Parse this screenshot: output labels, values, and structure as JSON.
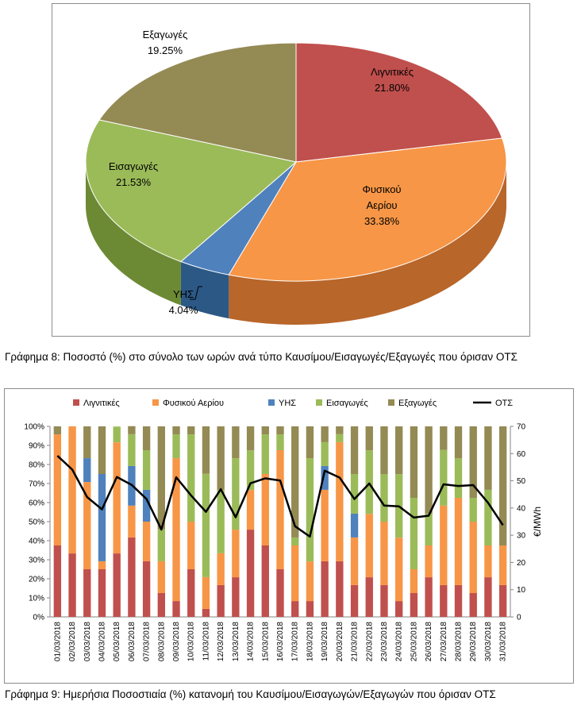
{
  "chart_data": [
    {
      "type": "pie",
      "title": "",
      "slices": [
        {
          "name": "Λιγνιτικές",
          "value": 21.8,
          "label": "21.80%",
          "color": "#c0504d",
          "side": "#8e2f2c"
        },
        {
          "name": "Φυσικού Αερίου",
          "value": 33.38,
          "label": "33.38%",
          "color": "#f79646",
          "side": "#b8662a"
        },
        {
          "name": "ΥΗΣ",
          "value": 4.04,
          "label": "4.04%",
          "color": "#4f81bd",
          "side": "#2c5886"
        },
        {
          "name": "Εισαγωγές",
          "value": 21.53,
          "label": "21.53%",
          "color": "#9bbb59",
          "side": "#6c8a34"
        },
        {
          "name": "Εξαγωγές",
          "value": 19.25,
          "label": "19.25%",
          "color": "#948a54",
          "side": "#6b6236"
        }
      ]
    },
    {
      "type": "bar",
      "stacked": "percent",
      "title": "",
      "categories": [
        "01/03/2018",
        "02/03/2018",
        "03/03/2018",
        "04/03/2018",
        "05/03/2018",
        "06/03/2018",
        "07/03/2018",
        "08/03/2018",
        "09/03/2018",
        "10/03/2018",
        "11/03/2018",
        "12/03/2018",
        "13/03/2018",
        "14/03/2018",
        "15/03/2018",
        "16/03/2018",
        "17/03/2018",
        "18/03/2018",
        "19/03/2018",
        "20/03/2018",
        "21/03/2018",
        "22/03/2018",
        "23/03/2018",
        "24/03/2018",
        "25/03/2018",
        "26/03/2018",
        "27/03/2018",
        "28/03/2018",
        "29/03/2018",
        "30/03/2018",
        "31/03/2018"
      ],
      "series": [
        {
          "name": "Λιγνιτικές",
          "color": "#c0504d",
          "values": [
            37.5,
            33.3,
            25,
            25,
            33.3,
            41.7,
            29.2,
            12.5,
            8.3,
            25,
            4.2,
            16.7,
            20.8,
            45.8,
            37.5,
            25,
            8.3,
            8.3,
            29.2,
            29.2,
            16.7,
            20.8,
            16.7,
            8.3,
            12.5,
            20.8,
            16.7,
            16.7,
            12.5,
            20.8,
            16.7
          ]
        },
        {
          "name": "Φυσικού Αερίου",
          "color": "#f79646",
          "values": [
            58.3,
            66.7,
            45.8,
            4.2,
            58.3,
            16.7,
            20.8,
            16.7,
            75,
            25,
            16.7,
            16.7,
            25,
            20.8,
            37.5,
            62.5,
            29.2,
            20.8,
            37.5,
            62.5,
            25,
            33.3,
            33.3,
            33.3,
            12.5,
            16.7,
            41.7,
            45.8,
            37.5,
            16.7,
            20.8
          ]
        },
        {
          "name": "ΥΗΣ",
          "color": "#4f81bd",
          "values": [
            0,
            0,
            12.5,
            45.8,
            0,
            20.8,
            16.7,
            0,
            0,
            0,
            0,
            0,
            0,
            0,
            0,
            0,
            0,
            0,
            12.5,
            0,
            12.5,
            0,
            0,
            0,
            0,
            0,
            0,
            0,
            0,
            0,
            0
          ]
        },
        {
          "name": "Εισαγωγές",
          "color": "#9bbb59",
          "values": [
            0,
            0,
            0,
            0,
            8.3,
            16.7,
            20.8,
            16.7,
            12.5,
            45.8,
            54.2,
            33.3,
            37.5,
            20.8,
            20.8,
            8.3,
            4.2,
            54.2,
            12.5,
            4.2,
            20.8,
            33.3,
            25,
            33.3,
            37.5,
            16.7,
            29.2,
            20.8,
            12.5,
            29.2,
            0
          ]
        },
        {
          "name": "Εξαγωγές",
          "color": "#948a54",
          "values": [
            4.2,
            0,
            16.7,
            25,
            0,
            4.2,
            12.5,
            54.1,
            4.2,
            4.2,
            24.9,
            33.3,
            16.7,
            12.6,
            4.2,
            4.2,
            58.3,
            16.7,
            8.3,
            4.1,
            25,
            12.6,
            25,
            25.1,
            37.5,
            45.8,
            12.4,
            16.7,
            37.5,
            33.3,
            62.5
          ]
        }
      ],
      "line": {
        "name": "ΟΤΣ",
        "color": "#000000",
        "values": [
          59.2,
          54.1,
          44,
          39.5,
          51.4,
          48.5,
          43.3,
          32.1,
          51.3,
          44.6,
          38.6,
          46.9,
          36.6,
          49.1,
          50.9,
          50.1,
          33.3,
          29.5,
          53.7,
          51.2,
          43.3,
          49,
          40.9,
          40.6,
          36.5,
          37.2,
          48.7,
          48.1,
          48.4,
          41.9,
          33.7
        ]
      },
      "yticks": [
        "0%",
        "10%",
        "20%",
        "30%",
        "40%",
        "50%",
        "60%",
        "70%",
        "80%",
        "90%",
        "100%"
      ],
      "y2ticks": [
        "0",
        "10",
        "20",
        "30",
        "40",
        "50",
        "60",
        "70"
      ],
      "y2label": "€/MWh",
      "ylim": [
        0,
        100
      ],
      "y2lim": [
        0,
        70
      ],
      "legend_position": "top",
      "grid": false
    }
  ],
  "captions": {
    "fig8": "Γράφημα 8: Ποσοστό (%) στο σύνολο των ωρών ανά τύπο Καυσίμου/Εισαγωγές/Εξαγωγές που όρισαν ΟΤΣ",
    "fig9": "Γράφημα 9: Ημερήσια Ποσοστιαία (%) κατανομή του Καυσίμου/Εισαγωγών/Εξαγωγών που όρισαν ΟΤΣ"
  }
}
